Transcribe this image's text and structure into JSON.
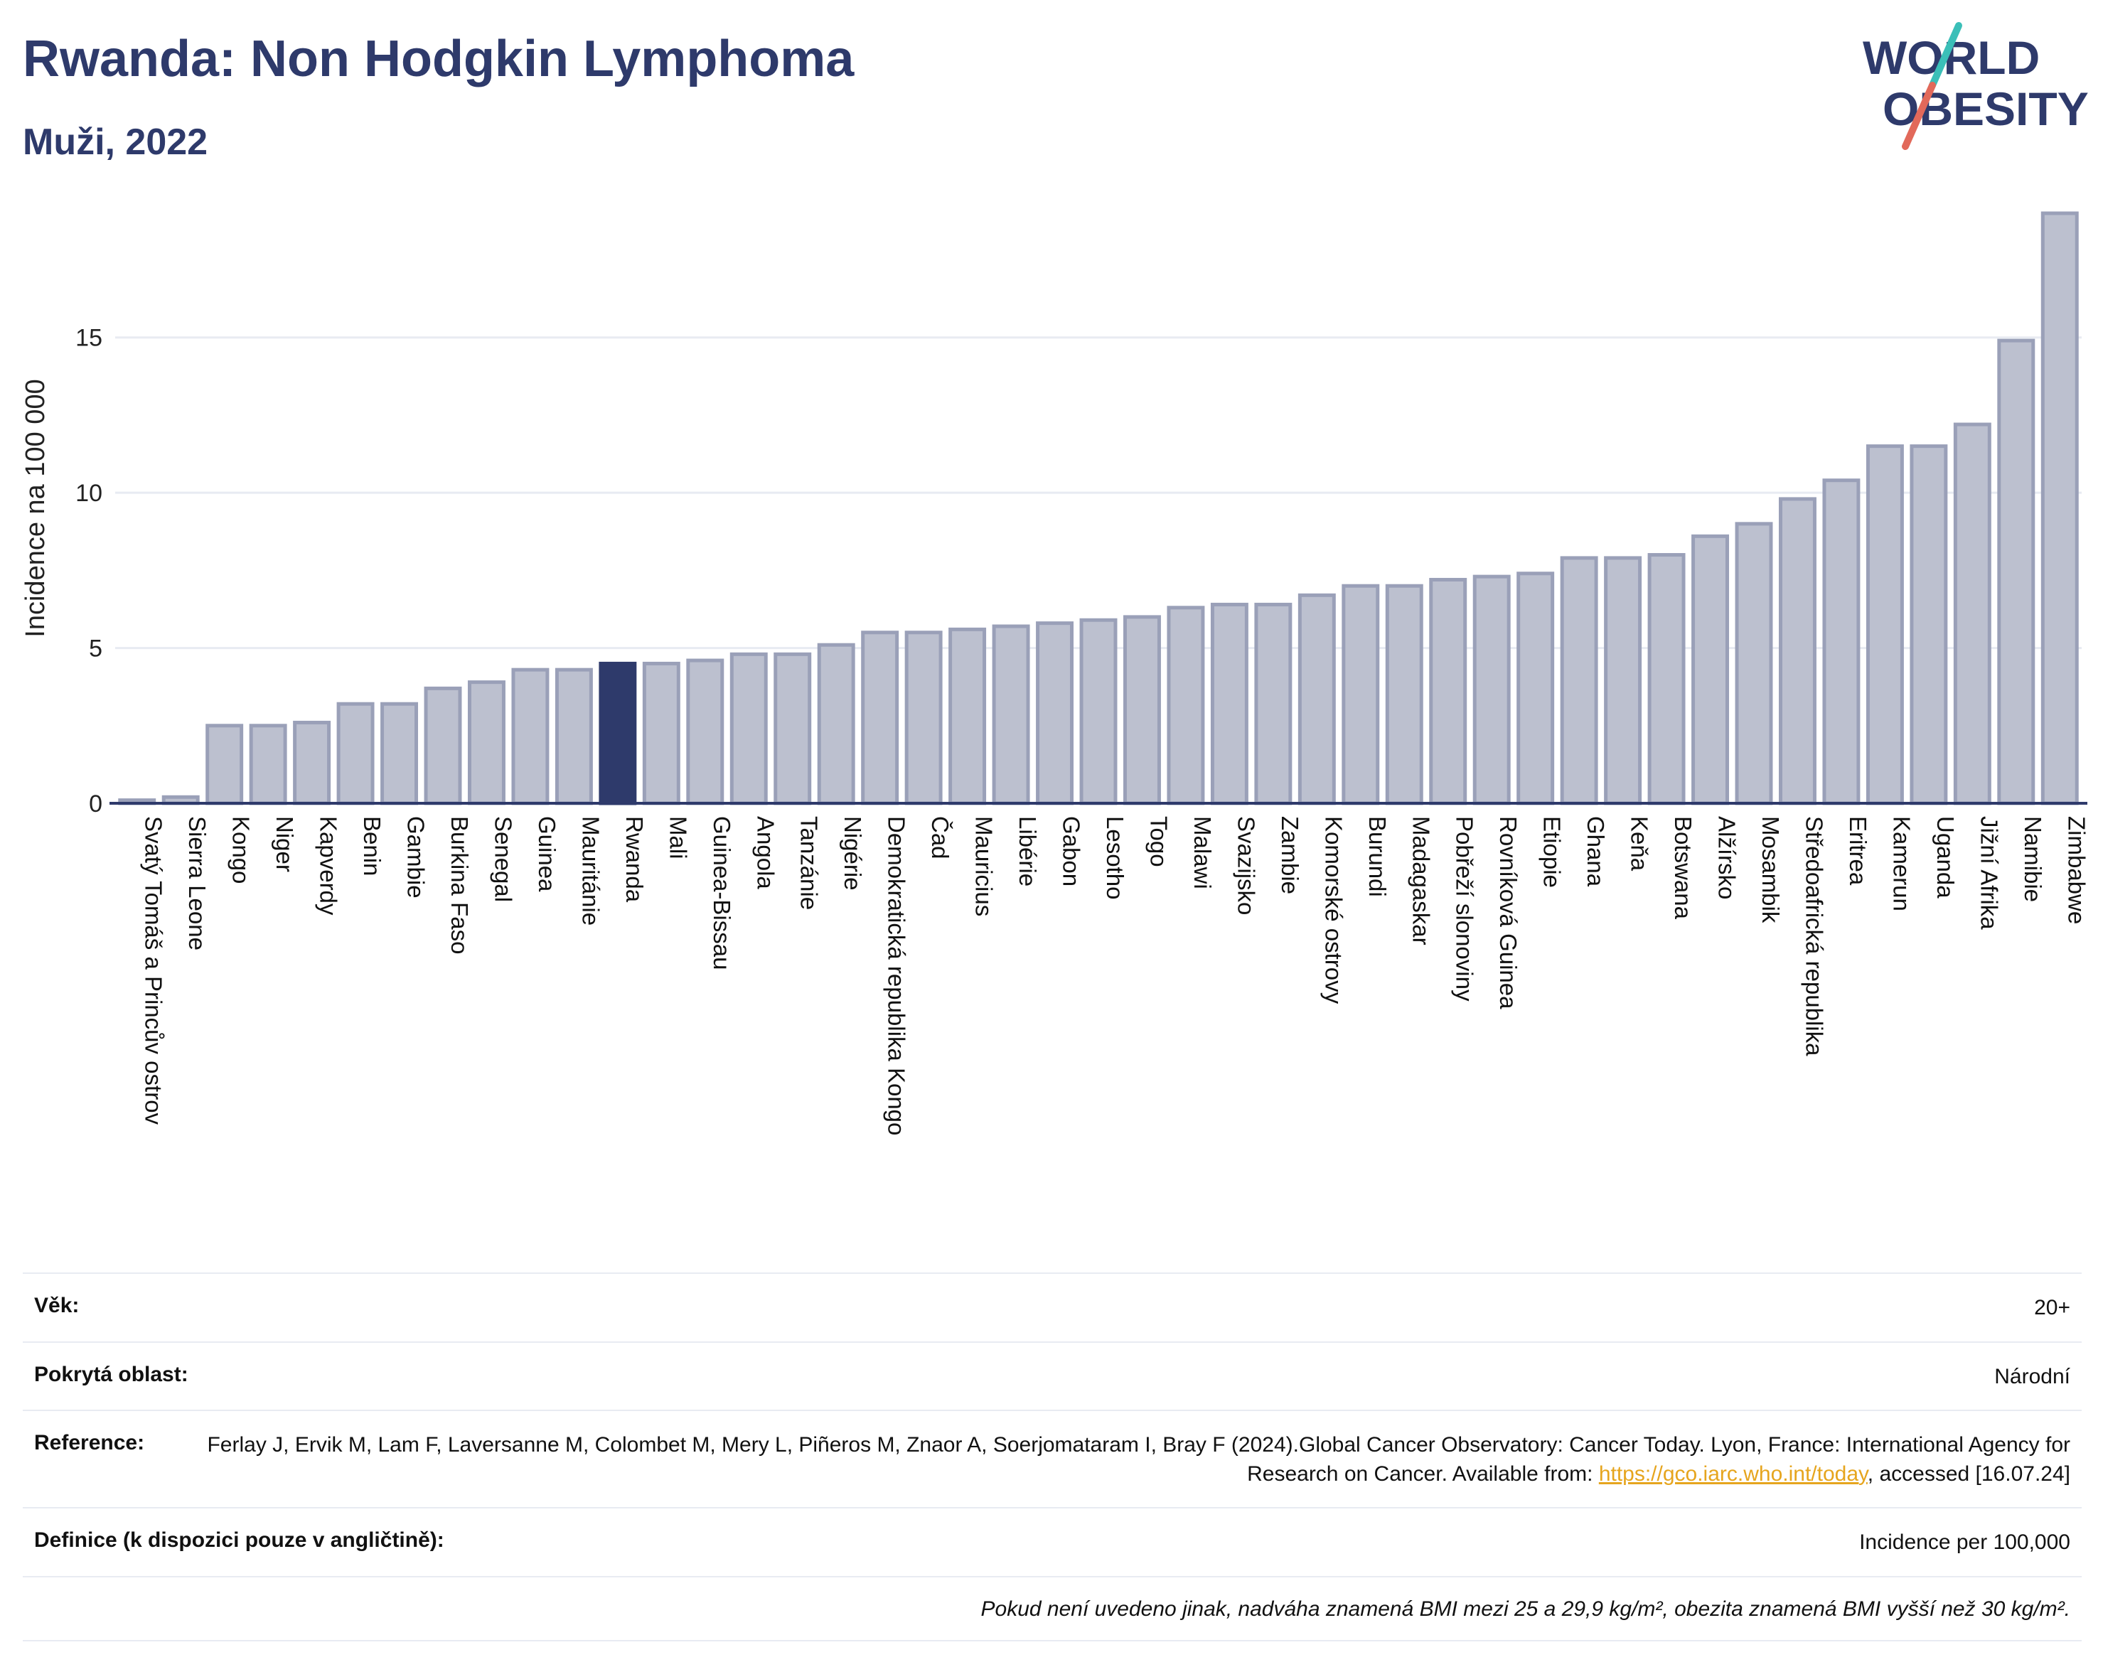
{
  "header": {
    "title": "Rwanda: Non Hodgkin Lymphoma",
    "subtitle": "Muži, 2022"
  },
  "logo": {
    "line1": "WORLD",
    "line2": "OBESITY",
    "colors": {
      "text": "#2e3a6b",
      "slash_top": "#3bbfb8",
      "slash_bottom": "#e2695a"
    }
  },
  "chart_data": {
    "type": "bar",
    "ylabel": "Incidence na 100 000",
    "ylim": [
      0,
      19
    ],
    "yticks": [
      0,
      5,
      10,
      15
    ],
    "grid": true,
    "highlight": "Rwanda",
    "colors": {
      "bar": "#bcc0cf",
      "bar_edge": "#9aa0b8",
      "highlight": "#2e3a6b",
      "axis": "#2e3a6b",
      "grid": "#e8ebf2"
    },
    "categories": [
      "Svatý Tomáš a Princův ostrov",
      "Sierra Leone",
      "Kongo",
      "Niger",
      "Kapverdy",
      "Benin",
      "Gambie",
      "Burkina Faso",
      "Senegal",
      "Guinea",
      "Mauritánie",
      "Rwanda",
      "Mali",
      "Guinea-Bissau",
      "Angola",
      "Tanzánie",
      "Nigérie",
      "Demokratická republika Kongo",
      "Čad",
      "Mauricius",
      "Libérie",
      "Gabon",
      "Lesotho",
      "Togo",
      "Malawi",
      "Svazijsko",
      "Zambie",
      "Komorské ostrovy",
      "Burundi",
      "Madagaskar",
      "Pobřeží slonoviny",
      "Rovníková Guinea",
      "Etiopie",
      "Ghana",
      "Keňa",
      "Botswana",
      "Alžírsko",
      "Mosambik",
      "Středoafrická republika",
      "Eritrea",
      "Kamerun",
      "Uganda",
      "Jižní Afrika",
      "Namibie",
      "Zimbabwe"
    ],
    "values": [
      0.1,
      0.2,
      2.5,
      2.5,
      2.6,
      3.2,
      3.2,
      3.7,
      3.9,
      4.3,
      4.3,
      4.5,
      4.5,
      4.6,
      4.8,
      4.8,
      5.1,
      5.5,
      5.5,
      5.6,
      5.7,
      5.8,
      5.9,
      6.0,
      6.3,
      6.4,
      6.4,
      6.7,
      7.0,
      7.0,
      7.2,
      7.3,
      7.4,
      7.9,
      7.9,
      8.0,
      8.6,
      9.0,
      9.8,
      10.4,
      11.5,
      11.5,
      12.2,
      14.9,
      19.0
    ]
  },
  "info": {
    "age_label": "Věk:",
    "age_value": "20+",
    "area_label": "Pokrytá oblast:",
    "area_value": "Národní",
    "reference_label": "Reference:",
    "reference_text": "Ferlay J, Ervik M, Lam F, Laversanne M, Colombet M, Mery L, Piñeros M, Znaor A, Soerjomataram I, Bray F (2024).Global Cancer Observatory: Cancer Today. Lyon, France: International Agency for Research on Cancer. Available from: ",
    "reference_link": "https://gco.iarc.who.int/today",
    "reference_suffix": ", accessed [16.07.24]",
    "definition_label": "Definice (k dispozici pouze v angličtině):",
    "definition_value": "Incidence per 100,000",
    "note": "Pokud není uvedeno jinak, nadváha znamená BMI mezi 25 a 29,9 kg/m², obezita znamená BMI vyšší než 30 kg/m²."
  }
}
